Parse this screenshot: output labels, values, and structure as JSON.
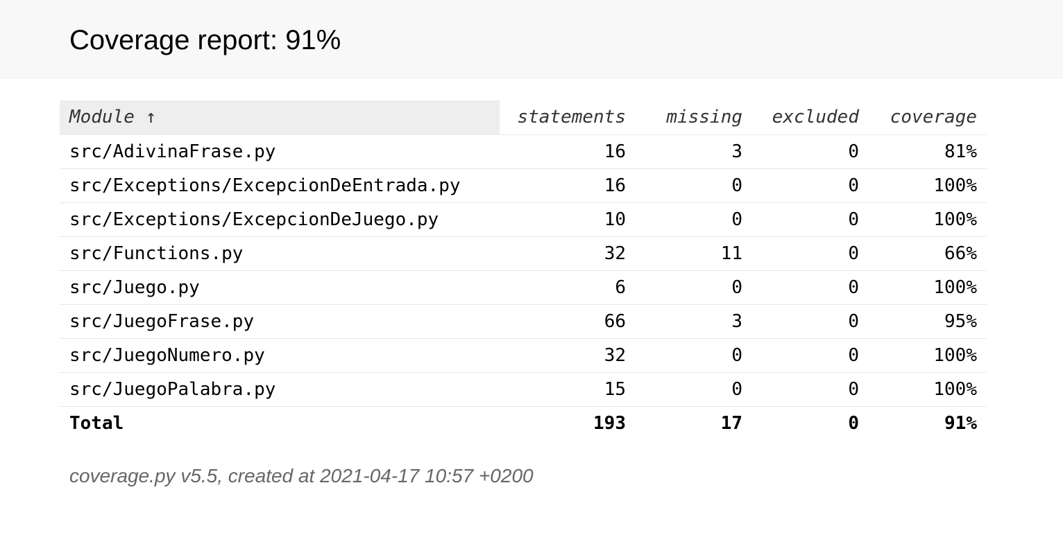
{
  "header": {
    "title": "Coverage report: 91%"
  },
  "table": {
    "columns": {
      "module": "Module ↑",
      "statements": "statements",
      "missing": "missing",
      "excluded": "excluded",
      "coverage": "coverage"
    },
    "rows": [
      {
        "module": "src/AdivinaFrase.py",
        "statements": "16",
        "missing": "3",
        "excluded": "0",
        "coverage": "81%"
      },
      {
        "module": "src/Exceptions/ExcepcionDeEntrada.py",
        "statements": "16",
        "missing": "0",
        "excluded": "0",
        "coverage": "100%"
      },
      {
        "module": "src/Exceptions/ExcepcionDeJuego.py",
        "statements": "10",
        "missing": "0",
        "excluded": "0",
        "coverage": "100%"
      },
      {
        "module": "src/Functions.py",
        "statements": "32",
        "missing": "11",
        "excluded": "0",
        "coverage": "66%"
      },
      {
        "module": "src/Juego.py",
        "statements": "6",
        "missing": "0",
        "excluded": "0",
        "coverage": "100%"
      },
      {
        "module": "src/JuegoFrase.py",
        "statements": "66",
        "missing": "3",
        "excluded": "0",
        "coverage": "95%"
      },
      {
        "module": "src/JuegoNumero.py",
        "statements": "32",
        "missing": "0",
        "excluded": "0",
        "coverage": "100%"
      },
      {
        "module": "src/JuegoPalabra.py",
        "statements": "15",
        "missing": "0",
        "excluded": "0",
        "coverage": "100%"
      }
    ],
    "total": {
      "module": "Total",
      "statements": "193",
      "missing": "17",
      "excluded": "0",
      "coverage": "91%"
    }
  },
  "footer": {
    "text": "coverage.py v5.5, created at 2021-04-17 10:57 +0200"
  }
}
